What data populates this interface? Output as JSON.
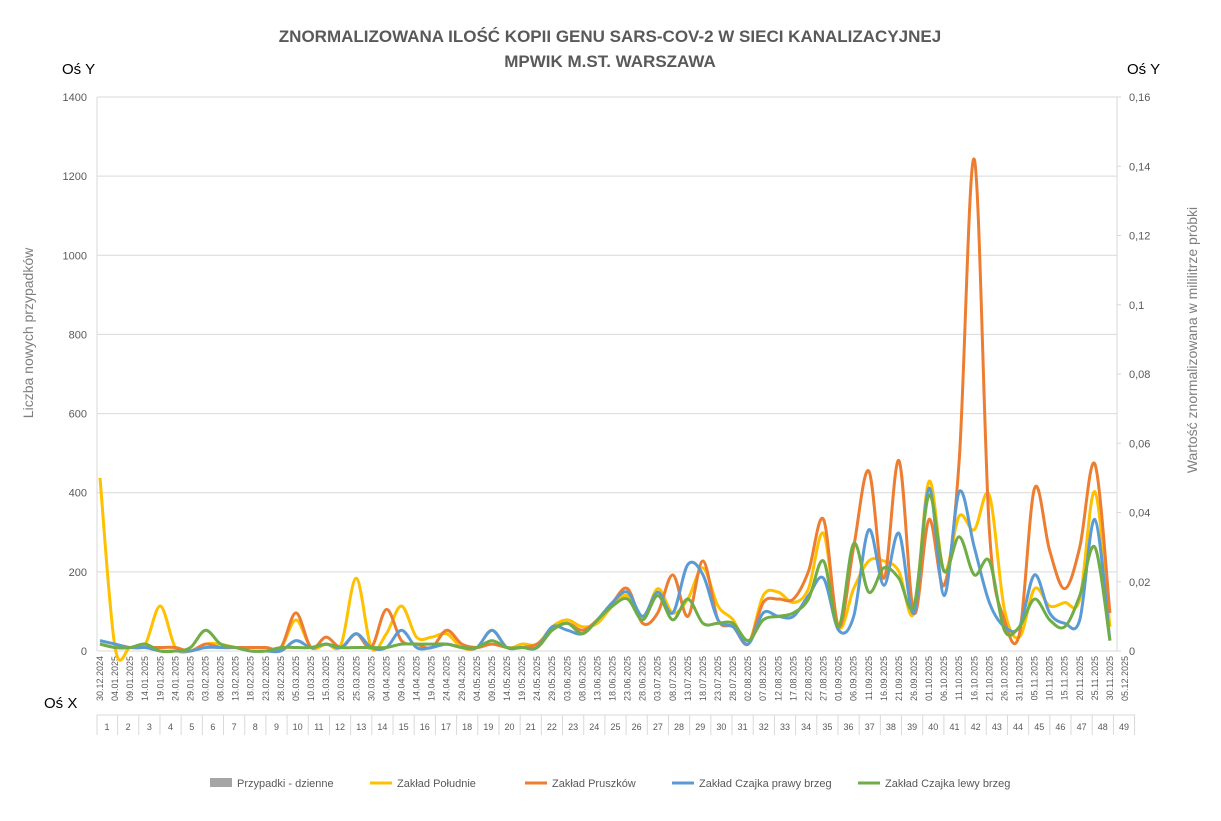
{
  "chart_data": {
    "type": "line",
    "title": "ZNORMALIZOWANA ILOŚĆ KOPII GENU SARS-COV-2 W SIECI KANALIZACYJNEJ",
    "subtitle": "MPWIK M.ST. WARSZAWA",
    "y_axis_name": "Oś Y",
    "y2_axis_name": "Oś Y",
    "x_axis_name": "Oś X",
    "ylabel": "Liczba nowych przypadków",
    "y2label": "Wartość znormalizowana w mililitrze próbki",
    "ylim": [
      0,
      1400
    ],
    "yticks": [
      0,
      200,
      400,
      600,
      800,
      1000,
      1200,
      1400
    ],
    "y2lim": [
      0,
      0.16
    ],
    "y2ticks": [
      0,
      {
        "value": 0.02,
        "label": "0,02"
      },
      {
        "value": 0.04,
        "label": "0,04"
      },
      {
        "value": 0.06,
        "label": "0,06"
      },
      {
        "value": 0.08,
        "label": "0,08"
      },
      {
        "value": 0.1,
        "label": "0,1"
      },
      {
        "value": 0.12,
        "label": "0,12"
      },
      {
        "value": 0.14,
        "label": "0,14"
      },
      {
        "value": 0.16,
        "label": "0,16"
      }
    ],
    "grid": true,
    "legend": "bottom",
    "categories": [
      "30.12.2024",
      "04.01.2025",
      "09.01.2025",
      "14.01.2025",
      "19.01.2025",
      "24.01.2025",
      "29.01.2025",
      "03.02.2025",
      "08.02.2025",
      "13.02.2025",
      "18.02.2025",
      "23.02.2025",
      "28.02.2025",
      "05.03.2025",
      "10.03.2025",
      "15.03.2025",
      "20.03.2025",
      "25.03.2025",
      "30.03.2025",
      "04.04.2025",
      "09.04.2025",
      "14.04.2025",
      "19.04.2025",
      "24.04.2025",
      "29.04.2025",
      "04.05.2025",
      "09.05.2025",
      "14.05.2025",
      "19.05.2025",
      "24.05.2025",
      "29.05.2025",
      "03.06.2025",
      "08.06.2025",
      "13.06.2025",
      "18.06.2025",
      "23.06.2025",
      "28.06.2025",
      "03.07.2025",
      "08.07.2025",
      "13.07.2025",
      "18.07.2025",
      "23.07.2025",
      "28.07.2025",
      "02.08.2025",
      "07.08.2025",
      "12.08.2025",
      "17.08.2025",
      "22.08.2025",
      "27.08.2025",
      "01.09.2025",
      "06.09.2025",
      "11.09.2025",
      "16.09.2025",
      "21.09.2025",
      "26.09.2025",
      "01.10.2025",
      "06.10.2025",
      "11.10.2025",
      "16.10.2025",
      "21.10.2025",
      "26.10.2025",
      "31.10.2025",
      "05.11.2025",
      "10.11.2025",
      "15.11.2025",
      "20.11.2025",
      "25.11.2025",
      "30.11.2025",
      "05.12.2025"
    ],
    "week_numbers": [
      1,
      2,
      3,
      4,
      5,
      6,
      7,
      8,
      9,
      10,
      11,
      12,
      13,
      14,
      15,
      16,
      17,
      18,
      19,
      20,
      21,
      22,
      23,
      24,
      25,
      26,
      27,
      28,
      29,
      30,
      31,
      32,
      33,
      34,
      35,
      36,
      37,
      38,
      39,
      40,
      41,
      42,
      43,
      44,
      45,
      46,
      47,
      48,
      49
    ],
    "series": [
      {
        "name": "Przypadki - dzienne",
        "color": "#a5a5a5",
        "type": "bar",
        "values": [
          null,
          null,
          null,
          null,
          null,
          null,
          null,
          null,
          null,
          null,
          null,
          null,
          null,
          null,
          null,
          null,
          null,
          null,
          null,
          null,
          null,
          null,
          null,
          null,
          null,
          null,
          null,
          null,
          null,
          null,
          null,
          null,
          null,
          null,
          null,
          null,
          null,
          null,
          null,
          null,
          null,
          null,
          null,
          null,
          null,
          null,
          null,
          null,
          null,
          null,
          null,
          null,
          null,
          null,
          null,
          null,
          null,
          null,
          null,
          null,
          null,
          null,
          null,
          null,
          null,
          null,
          null,
          null,
          null
        ]
      },
      {
        "name": "Zakład Południe",
        "color": "#ffc000",
        "axis": "y2",
        "values": [
          0.05,
          0.001,
          0.001,
          0.002,
          0.013,
          0.001,
          0,
          0.002,
          0.002,
          0.001,
          0.001,
          0.001,
          0.001,
          0.009,
          0.001,
          0.002,
          0.002,
          0.021,
          0.001,
          0.005,
          0.013,
          0.004,
          0.004,
          0.005,
          0.001,
          0.001,
          0.006,
          0.001,
          0.002,
          0.002,
          0.007,
          0.009,
          0.007,
          0.008,
          0.013,
          0.016,
          0.009,
          0.018,
          0.011,
          0.015,
          0.024,
          0.013,
          0.009,
          0.002,
          0.016,
          0.017,
          0.014,
          0.018,
          0.034,
          0.007,
          0.018,
          0.026,
          0.026,
          0.023,
          0.011,
          0.049,
          0.023,
          0.039,
          0.035,
          0.045,
          0.012,
          0.004,
          0.018,
          0.013,
          0.014,
          0.015,
          0.046,
          0.007,
          null
        ]
      },
      {
        "name": "Zakład Pruszków",
        "color": "#ed7d31",
        "axis": "y2",
        "values": [
          0.002,
          0.001,
          0.001,
          0.001,
          0.001,
          0.001,
          0,
          0.002,
          0.001,
          0.001,
          0.001,
          0.001,
          0.001,
          0.011,
          0.001,
          0.004,
          0.001,
          0.005,
          0.001,
          0.012,
          0.003,
          0.002,
          0.001,
          0.006,
          0.002,
          0.001,
          0.002,
          0.001,
          0.001,
          0.002,
          0.006,
          0.008,
          0.006,
          0.009,
          0.014,
          0.018,
          0.008,
          0.011,
          0.022,
          0.01,
          0.026,
          0.009,
          0.007,
          0.002,
          0.014,
          0.015,
          0.015,
          0.023,
          0.038,
          0.007,
          0.03,
          0.052,
          0.021,
          0.055,
          0.011,
          0.038,
          0.019,
          0.055,
          0.142,
          0.035,
          0.009,
          0.005,
          0.047,
          0.029,
          0.018,
          0.03,
          0.054,
          0.011,
          null
        ]
      },
      {
        "name": "Zakład Czajka prawy brzeg",
        "color": "#5b9bd5",
        "axis": "y2",
        "values": [
          0.003,
          0.002,
          0.001,
          0.001,
          0,
          0,
          0,
          0.001,
          0.001,
          0.001,
          0,
          0,
          0,
          0.003,
          0.001,
          0.002,
          0.001,
          0.005,
          0.001,
          0.001,
          0.006,
          0.001,
          0.001,
          0.002,
          0.001,
          0.001,
          0.006,
          0.001,
          0.001,
          0.001,
          0.007,
          0.006,
          0.005,
          0.009,
          0.014,
          0.017,
          0.01,
          0.017,
          0.011,
          0.025,
          0.022,
          0.009,
          0.007,
          0.002,
          0.011,
          0.01,
          0.01,
          0.016,
          0.021,
          0.006,
          0.01,
          0.035,
          0.019,
          0.034,
          0.011,
          0.047,
          0.016,
          0.046,
          0.03,
          0.014,
          0.007,
          0.007,
          0.022,
          0.011,
          0.008,
          0.009,
          0.038,
          0.003,
          null
        ]
      },
      {
        "name": "Zakład Czajka lewy brzeg",
        "color": "#70ad47",
        "axis": "y2",
        "values": [
          0.002,
          0.001,
          0.001,
          0.002,
          0,
          0,
          0.001,
          0.006,
          0.002,
          0.001,
          0,
          0,
          0.001,
          0.001,
          0.001,
          0.002,
          0.001,
          0.001,
          0.001,
          0.001,
          0.002,
          0.002,
          0.002,
          0.002,
          0.001,
          0.001,
          0.003,
          0.001,
          0.001,
          0.001,
          0.006,
          0.008,
          0.005,
          0.009,
          0.013,
          0.015,
          0.009,
          0.016,
          0.009,
          0.015,
          0.008,
          0.008,
          0.008,
          0.003,
          0.009,
          0.01,
          0.011,
          0.015,
          0.026,
          0.007,
          0.031,
          0.017,
          0.024,
          0.021,
          0.013,
          0.045,
          0.023,
          0.033,
          0.022,
          0.026,
          0.006,
          0.007,
          0.015,
          0.009,
          0.007,
          0.016,
          0.03,
          0.003,
          null
        ]
      }
    ]
  }
}
